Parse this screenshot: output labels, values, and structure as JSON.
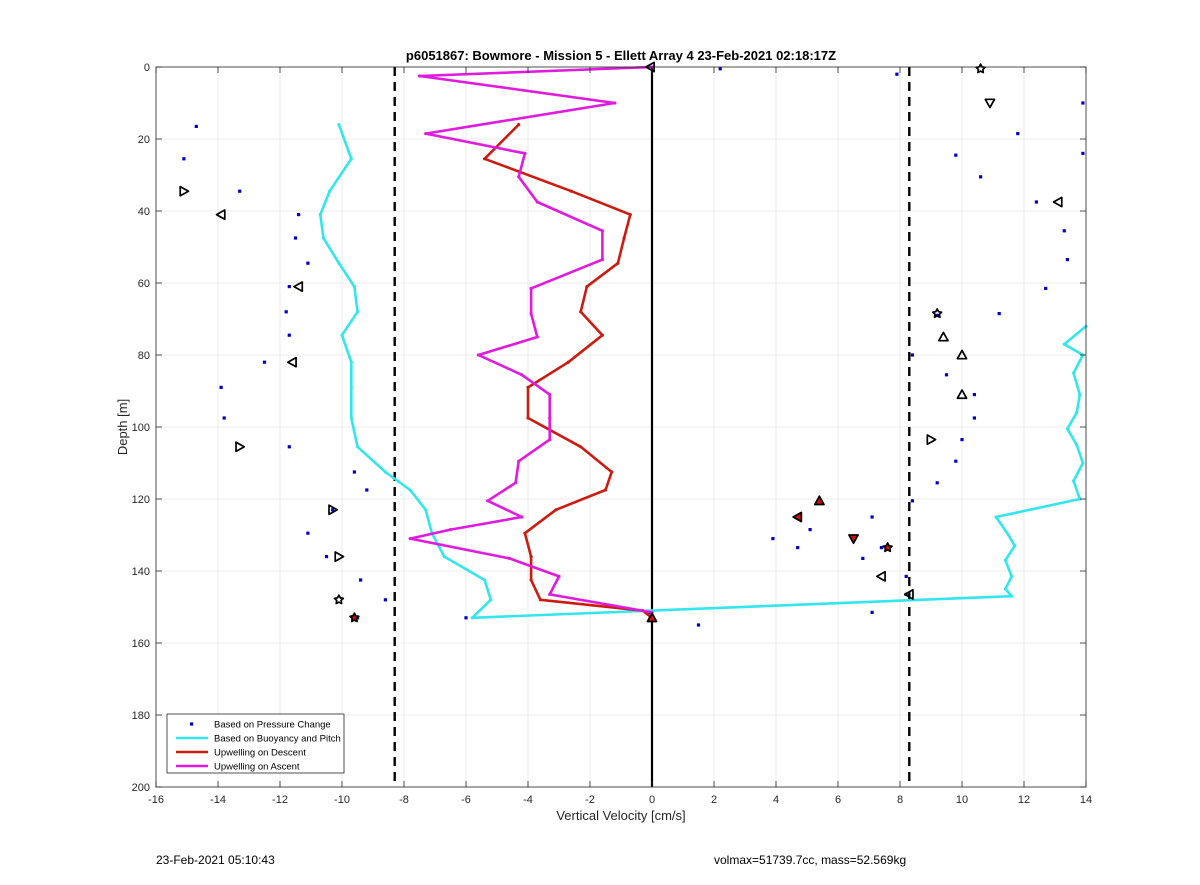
{
  "footer": {
    "left": "23-Feb-2021 05:10:43",
    "right": "volmax=51739.7cc, mass=52.569kg"
  },
  "chart_data": {
    "type": "line",
    "title": "p6051867: Bowmore - Mission 5 - Ellett Array 4 23-Feb-2021 02:18:17Z",
    "xlabel": "Vertical Velocity [cm/s]",
    "ylabel": "Depth [m]",
    "xlim": [
      -16,
      14
    ],
    "ylim": [
      0,
      200
    ],
    "y_reversed": true,
    "grid": true,
    "legend_position": "bottom-left",
    "xticks": [
      -16,
      -14,
      -12,
      -10,
      -8,
      -6,
      -4,
      -2,
      0,
      2,
      4,
      6,
      8,
      10,
      12,
      14
    ],
    "yticks": [
      0,
      20,
      40,
      60,
      80,
      100,
      120,
      140,
      160,
      180,
      200
    ],
    "reference_lines": [
      {
        "x": -8.3,
        "style": "dashed",
        "color": "#000000"
      },
      {
        "x": 0,
        "style": "solid",
        "color": "#000000"
      },
      {
        "x": 8.3,
        "style": "dashed",
        "color": "#000000"
      }
    ],
    "series": [
      {
        "name": "Based on Pressure Change",
        "kind": "scatter",
        "color": "#0000cc",
        "points": [
          [
            -14.7,
            16.5
          ],
          [
            -15.1,
            25.5
          ],
          [
            -13.3,
            34.5
          ],
          [
            -11.4,
            41
          ],
          [
            -11.5,
            47.5
          ],
          [
            -11.1,
            54.5
          ],
          [
            -11.7,
            61
          ],
          [
            -11.8,
            68
          ],
          [
            -11.7,
            74.5
          ],
          [
            -12.5,
            82
          ],
          [
            -13.9,
            89
          ],
          [
            -13.8,
            97.5
          ],
          [
            -11.7,
            105.5
          ],
          [
            -9.6,
            112.5
          ],
          [
            -9.2,
            117.5
          ],
          [
            -10.3,
            123
          ],
          [
            -11.1,
            129.5
          ],
          [
            -10.5,
            136
          ],
          [
            -9.4,
            142.5
          ],
          [
            -8.6,
            148
          ],
          [
            -9.5,
            153
          ],
          [
            -6,
            153
          ],
          [
            -0.1,
            151.5
          ],
          [
            1.5,
            155
          ],
          [
            2.2,
            0.5
          ],
          [
            7.9,
            2
          ],
          [
            13.9,
            10
          ],
          [
            11.8,
            18.5
          ],
          [
            9.8,
            24.5
          ],
          [
            13.9,
            24
          ],
          [
            10.6,
            30.5
          ],
          [
            12.4,
            37.5
          ],
          [
            13.3,
            45.5
          ],
          [
            13.4,
            53.5
          ],
          [
            12.7,
            61.5
          ],
          [
            11.2,
            68.5
          ],
          [
            9.2,
            69
          ],
          [
            8.4,
            80
          ],
          [
            9.5,
            85.5
          ],
          [
            10.4,
            91
          ],
          [
            10.4,
            97.5
          ],
          [
            10,
            103.5
          ],
          [
            9.8,
            109.5
          ],
          [
            9.2,
            115.5
          ],
          [
            8.4,
            120.5
          ],
          [
            7.1,
            125
          ],
          [
            5.1,
            128.5
          ],
          [
            3.9,
            131
          ],
          [
            4.7,
            133.5
          ],
          [
            7.4,
            133.5
          ],
          [
            6.8,
            136.5
          ],
          [
            8.2,
            141.5
          ],
          [
            8.2,
            146.5
          ],
          [
            7.1,
            151.5
          ]
        ]
      },
      {
        "name": "Based on Buoyancy and Pitch",
        "kind": "line",
        "color": "#33e6ee",
        "points": [
          [
            -10.1,
            16
          ],
          [
            -9.7,
            25.5
          ],
          [
            -10.4,
            34.5
          ],
          [
            -10.7,
            41
          ],
          [
            -10.6,
            47.5
          ],
          [
            -10.1,
            54.5
          ],
          [
            -9.6,
            61
          ],
          [
            -9.5,
            68
          ],
          [
            -10,
            74.5
          ],
          [
            -9.7,
            82
          ],
          [
            -9.7,
            89
          ],
          [
            -9.7,
            97.5
          ],
          [
            -9.5,
            105.5
          ],
          [
            -8.6,
            112.5
          ],
          [
            -7.8,
            117.5
          ],
          [
            -7.3,
            123
          ],
          [
            -7.1,
            129.5
          ],
          [
            -6.7,
            136
          ],
          [
            -5.4,
            142.5
          ],
          [
            -5.2,
            148
          ],
          [
            -5.8,
            153
          ],
          [
            0,
            151
          ],
          [
            11.6,
            147
          ],
          [
            11.4,
            145
          ],
          [
            11.6,
            141.5
          ],
          [
            11.4,
            137
          ],
          [
            11.7,
            133
          ],
          [
            11.5,
            130
          ],
          [
            11.1,
            125
          ],
          [
            13.8,
            120
          ],
          [
            13.6,
            115
          ],
          [
            13.9,
            110
          ],
          [
            13.7,
            105
          ],
          [
            13.4,
            100.5
          ],
          [
            13.7,
            96
          ],
          [
            13.8,
            91
          ],
          [
            13.6,
            85
          ],
          [
            13.9,
            80
          ],
          [
            13.3,
            77
          ],
          [
            14,
            72
          ]
        ]
      },
      {
        "name": "Upwelling on Descent",
        "kind": "line",
        "color": "#cc1b10",
        "points": [
          [
            -4.3,
            16
          ],
          [
            -5.4,
            25.5
          ],
          [
            -2.6,
            34.5
          ],
          [
            -0.7,
            41
          ],
          [
            -0.9,
            47.5
          ],
          [
            -1.1,
            54.5
          ],
          [
            -2.1,
            61
          ],
          [
            -2.3,
            68
          ],
          [
            -1.6,
            74.5
          ],
          [
            -2.7,
            82
          ],
          [
            -4,
            89
          ],
          [
            -4,
            97.5
          ],
          [
            -2.3,
            105.5
          ],
          [
            -1.3,
            112.5
          ],
          [
            -1.5,
            117.5
          ],
          [
            -3.1,
            123
          ],
          [
            -4.1,
            129.5
          ],
          [
            -3.9,
            136
          ],
          [
            -3.9,
            142.5
          ],
          [
            -3.6,
            148
          ],
          [
            -0.3,
            151
          ],
          [
            0,
            153
          ]
        ]
      },
      {
        "name": "Upwelling on Ascent",
        "kind": "line",
        "color": "#e01bde",
        "points": [
          [
            0,
            0
          ],
          [
            -7.5,
            2.5
          ],
          [
            -1.2,
            10
          ],
          [
            -7.3,
            18.5
          ],
          [
            -4.1,
            24
          ],
          [
            -4.3,
            30.5
          ],
          [
            -3.7,
            37.5
          ],
          [
            -1.6,
            45.5
          ],
          [
            -1.6,
            53.5
          ],
          [
            -3.9,
            61.5
          ],
          [
            -3.9,
            68.5
          ],
          [
            -3.7,
            75
          ],
          [
            -5.6,
            80
          ],
          [
            -4.2,
            85.5
          ],
          [
            -3.3,
            91
          ],
          [
            -3.3,
            97.5
          ],
          [
            -3.3,
            103.5
          ],
          [
            -4.3,
            109.5
          ],
          [
            -4.4,
            115.5
          ],
          [
            -5.3,
            120.5
          ],
          [
            -4.2,
            125
          ],
          [
            -6.5,
            128.5
          ],
          [
            -7.8,
            131
          ],
          [
            -4.6,
            136.5
          ],
          [
            -3,
            141.5
          ],
          [
            -3.3,
            146.5
          ],
          [
            0,
            151.5
          ]
        ]
      }
    ],
    "marker_points": [
      {
        "x": -0.05,
        "y": 0,
        "shape": "triangle-left",
        "fill": "none"
      },
      {
        "x": 10.6,
        "y": 0.5,
        "shape": "star",
        "fill": "none"
      },
      {
        "x": 10.9,
        "y": 10,
        "shape": "triangle-down",
        "fill": "none"
      },
      {
        "x": -15.1,
        "y": 34.5,
        "shape": "triangle-right",
        "fill": "none"
      },
      {
        "x": -13.9,
        "y": 41,
        "shape": "triangle-left",
        "fill": "none"
      },
      {
        "x": 13.1,
        "y": 37.5,
        "shape": "triangle-left",
        "fill": "none"
      },
      {
        "x": -11.4,
        "y": 61,
        "shape": "triangle-left",
        "fill": "none"
      },
      {
        "x": 9.2,
        "y": 68.5,
        "shape": "star",
        "fill": "none"
      },
      {
        "x": 9.4,
        "y": 75,
        "shape": "triangle-up",
        "fill": "none"
      },
      {
        "x": 10,
        "y": 80,
        "shape": "triangle-up",
        "fill": "none"
      },
      {
        "x": -11.6,
        "y": 82,
        "shape": "triangle-left",
        "fill": "none"
      },
      {
        "x": 10,
        "y": 91,
        "shape": "triangle-up",
        "fill": "none"
      },
      {
        "x": 9,
        "y": 103.5,
        "shape": "triangle-right",
        "fill": "none"
      },
      {
        "x": -13.3,
        "y": 105.5,
        "shape": "triangle-right",
        "fill": "none"
      },
      {
        "x": 5.4,
        "y": 120.5,
        "shape": "triangle-up",
        "fill": "#d01010"
      },
      {
        "x": -10.3,
        "y": 123,
        "shape": "triangle-right",
        "fill": "none"
      },
      {
        "x": 4.7,
        "y": 125,
        "shape": "triangle-left",
        "fill": "#d01010"
      },
      {
        "x": 6.5,
        "y": 131,
        "shape": "triangle-down",
        "fill": "#d01010"
      },
      {
        "x": 7.6,
        "y": 133.5,
        "shape": "star",
        "fill": "#d01010"
      },
      {
        "x": -10.1,
        "y": 136,
        "shape": "triangle-right",
        "fill": "none"
      },
      {
        "x": 7.4,
        "y": 141.5,
        "shape": "triangle-left",
        "fill": "none"
      },
      {
        "x": -10.1,
        "y": 148,
        "shape": "star",
        "fill": "none"
      },
      {
        "x": 8.3,
        "y": 146.5,
        "shape": "triangle-left",
        "fill": "none"
      },
      {
        "x": -9.6,
        "y": 153,
        "shape": "star",
        "fill": "#d01010"
      },
      {
        "x": 0,
        "y": 153,
        "shape": "triangle-up",
        "fill": "#d01010"
      }
    ]
  }
}
